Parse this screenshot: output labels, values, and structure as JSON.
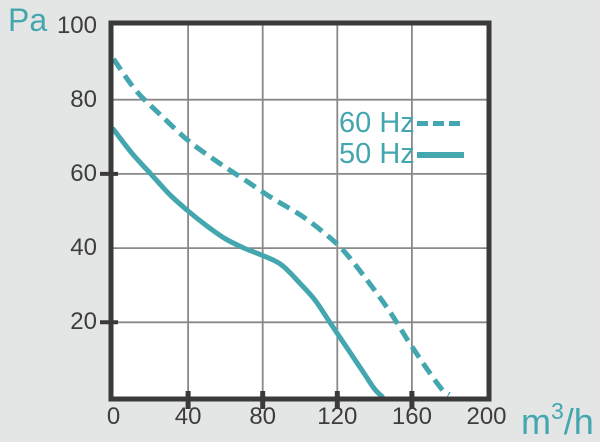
{
  "labels": {
    "y_unit": "Pa",
    "x_unit_base": "m",
    "x_unit_sup": "3",
    "x_unit_rest": "/h"
  },
  "colors": {
    "accent": "#44a6ae",
    "axis": "#3a3a3a",
    "grid": "#898989",
    "text": "#3d3d3d",
    "background": "#e4e6e5",
    "plot_background": "#ffffff"
  },
  "chart_data": {
    "type": "line",
    "title": "",
    "xlabel": "m3/h",
    "ylabel": "Pa",
    "xlim": [
      0,
      200
    ],
    "ylim": [
      0,
      100
    ],
    "x_ticks": [
      0,
      40,
      80,
      120,
      160,
      200
    ],
    "y_ticks": [
      100,
      80,
      60,
      40,
      20
    ],
    "x_gridlines": [
      40,
      80,
      120,
      160
    ],
    "y_gridlines": [
      20,
      40,
      60,
      80
    ],
    "x_tick_marks": [
      40,
      80,
      120,
      160
    ],
    "y_tick_marks": [
      60,
      20
    ],
    "grid": true,
    "legend_position": "inside-upper-right",
    "series": [
      {
        "name": "60 Hz",
        "line_style": "dashed",
        "points": [
          [
            0,
            91
          ],
          [
            12,
            82.5
          ],
          [
            25,
            76
          ],
          [
            40,
            69
          ],
          [
            55,
            63.5
          ],
          [
            70,
            58.5
          ],
          [
            85,
            53.5
          ],
          [
            100,
            49
          ],
          [
            112,
            44.5
          ],
          [
            123,
            39.5
          ],
          [
            135,
            32
          ],
          [
            148,
            23
          ],
          [
            158,
            15
          ],
          [
            168,
            7.5
          ],
          [
            176,
            2
          ],
          [
            180,
            0.5
          ]
        ]
      },
      {
        "name": "50 Hz",
        "line_style": "solid",
        "points": [
          [
            0,
            72
          ],
          [
            10,
            65.5
          ],
          [
            20,
            60
          ],
          [
            30,
            54.5
          ],
          [
            40,
            50
          ],
          [
            50,
            46
          ],
          [
            60,
            42.5
          ],
          [
            70,
            40
          ],
          [
            80,
            38
          ],
          [
            90,
            35.5
          ],
          [
            100,
            30.5
          ],
          [
            108,
            26
          ],
          [
            116,
            20
          ],
          [
            126,
            12.5
          ],
          [
            134,
            6.5
          ],
          [
            140,
            2
          ],
          [
            144,
            0
          ]
        ]
      }
    ]
  }
}
